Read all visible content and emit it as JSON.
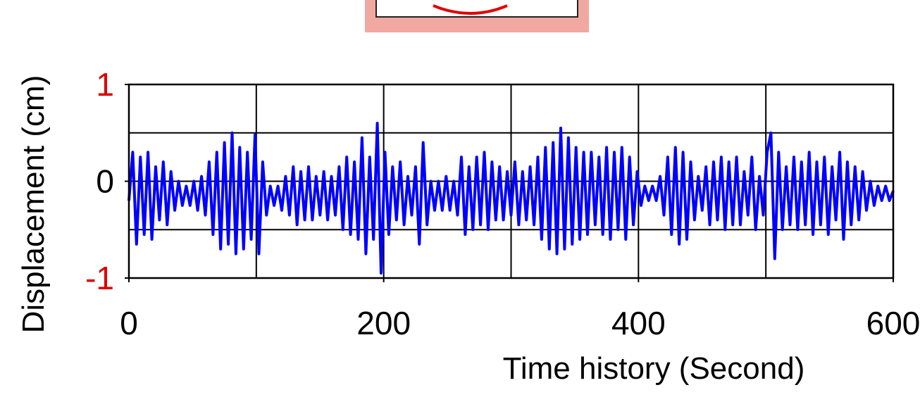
{
  "chart_data": {
    "type": "line",
    "x_label": "Time history (Second)",
    "y_label": "Displacement (cm)",
    "xlim": [
      0,
      600
    ],
    "ylim": [
      -1,
      1
    ],
    "xticks": [
      0,
      200,
      400,
      600
    ],
    "yticks": [
      -1,
      0,
      1
    ],
    "ytick_colors": [
      "#e00000",
      "#000000",
      "#e00000"
    ],
    "xgrid": [
      100,
      200,
      300,
      400,
      500
    ],
    "ygrid": [
      -0.5,
      0,
      0.5
    ],
    "grid": true,
    "series": [
      {
        "color": "#0000ff",
        "x": [
          0,
          3,
          6,
          9,
          12,
          15,
          18,
          21,
          24,
          27,
          30,
          33,
          36,
          39,
          42,
          45,
          48,
          51,
          54,
          57,
          60,
          63,
          66,
          69,
          72,
          75,
          78,
          81,
          84,
          87,
          90,
          93,
          96,
          99,
          102,
          105,
          108,
          111,
          114,
          117,
          120,
          123,
          126,
          129,
          132,
          135,
          138,
          141,
          144,
          147,
          150,
          153,
          156,
          159,
          162,
          165,
          168,
          171,
          174,
          177,
          180,
          183,
          186,
          189,
          192,
          195,
          198,
          201,
          204,
          207,
          210,
          213,
          216,
          219,
          222,
          225,
          228,
          231,
          234,
          237,
          240,
          243,
          246,
          249,
          252,
          255,
          258,
          261,
          264,
          267,
          270,
          273,
          276,
          279,
          282,
          285,
          288,
          291,
          294,
          297,
          300,
          303,
          306,
          309,
          312,
          315,
          318,
          321,
          324,
          327,
          330,
          333,
          336,
          339,
          342,
          345,
          348,
          351,
          354,
          357,
          360,
          363,
          366,
          369,
          372,
          375,
          378,
          381,
          384,
          387,
          390,
          393,
          396,
          399,
          402,
          405,
          408,
          411,
          414,
          417,
          420,
          423,
          426,
          429,
          432,
          435,
          438,
          441,
          444,
          447,
          450,
          453,
          456,
          459,
          462,
          465,
          468,
          471,
          474,
          477,
          480,
          483,
          486,
          489,
          492,
          495,
          498,
          501,
          504,
          507,
          510,
          513,
          516,
          519,
          522,
          525,
          528,
          531,
          534,
          537,
          540,
          543,
          546,
          549,
          552,
          555,
          558,
          561,
          564,
          567,
          570,
          573,
          576,
          579,
          582,
          585,
          588,
          591,
          594,
          597,
          600
        ],
        "values": [
          -0.2,
          0.3,
          -0.65,
          0.25,
          -0.55,
          0.3,
          -0.6,
          0.15,
          -0.4,
          0.2,
          -0.45,
          0.1,
          -0.3,
          0.0,
          -0.25,
          -0.05,
          -0.25,
          0.0,
          -0.3,
          0.05,
          -0.35,
          0.2,
          -0.55,
          0.3,
          -0.7,
          0.4,
          -0.65,
          0.5,
          -0.75,
          0.35,
          -0.7,
          0.3,
          -0.6,
          0.48,
          -0.75,
          0.2,
          -0.35,
          -0.05,
          -0.25,
          -0.05,
          -0.3,
          0.05,
          -0.35,
          0.15,
          -0.45,
          0.1,
          -0.4,
          0.15,
          -0.4,
          0.05,
          -0.35,
          0.1,
          -0.4,
          0.05,
          -0.35,
          0.15,
          -0.5,
          0.25,
          -0.55,
          0.2,
          -0.6,
          0.45,
          -0.75,
          0.25,
          -0.6,
          0.6,
          -0.95,
          0.3,
          -0.55,
          0.15,
          -0.4,
          0.2,
          -0.45,
          0.05,
          -0.35,
          0.15,
          -0.65,
          0.4,
          -0.45,
          0.0,
          -0.3,
          0.0,
          -0.3,
          0.05,
          -0.3,
          0.0,
          -0.35,
          0.25,
          -0.55,
          0.15,
          -0.5,
          0.25,
          -0.45,
          0.3,
          -0.5,
          0.2,
          -0.4,
          0.15,
          -0.4,
          0.1,
          -0.35,
          0.2,
          -0.45,
          0.1,
          -0.4,
          0.15,
          -0.45,
          0.25,
          -0.6,
          0.35,
          -0.7,
          0.4,
          -0.75,
          0.55,
          -0.7,
          0.45,
          -0.65,
          0.35,
          -0.6,
          0.3,
          -0.55,
          0.3,
          -0.45,
          0.25,
          -0.55,
          0.35,
          -0.6,
          0.3,
          -0.5,
          0.35,
          -0.6,
          0.25,
          -0.45,
          0.1,
          -0.25,
          -0.05,
          -0.2,
          -0.05,
          -0.2,
          0.05,
          -0.35,
          0.25,
          -0.55,
          0.35,
          -0.65,
          0.3,
          -0.6,
          0.2,
          -0.4,
          0.05,
          -0.3,
          0.15,
          -0.45,
          0.2,
          -0.4,
          0.25,
          -0.5,
          0.2,
          -0.45,
          0.25,
          -0.45,
          0.1,
          -0.35,
          0.25,
          -0.5,
          0.05,
          -0.35,
          0.3,
          0.5,
          -0.8,
          0.3,
          -0.5,
          0.15,
          -0.45,
          0.25,
          -0.5,
          0.2,
          -0.45,
          0.3,
          -0.55,
          0.2,
          -0.45,
          0.25,
          -0.55,
          0.15,
          -0.4,
          0.3,
          -0.6,
          0.2,
          -0.45,
          0.15,
          -0.4,
          0.1,
          -0.3,
          0.0,
          -0.25,
          -0.05,
          -0.2,
          -0.05,
          -0.2,
          -0.1
        ]
      }
    ]
  }
}
